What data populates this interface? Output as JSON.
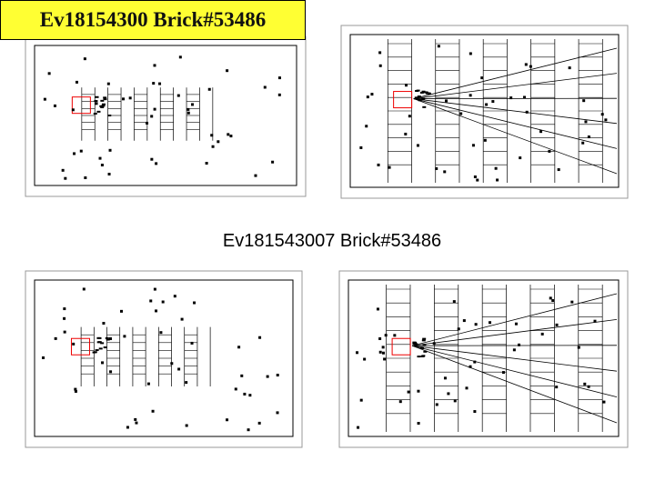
{
  "header": {
    "title": "Ev18154300 Brick#53486"
  },
  "caption": "Ev181543007 Brick#53486"
}
